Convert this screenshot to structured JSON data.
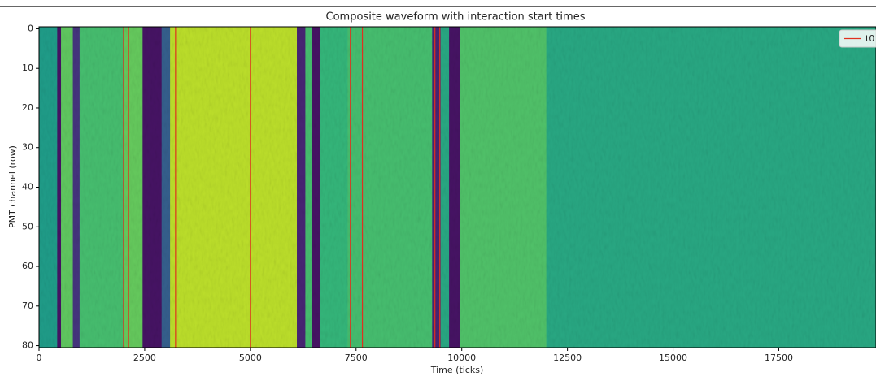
{
  "chart_data": {
    "type": "heatmap",
    "title": "Composite waveform with interaction start times",
    "x_label": "Time (ticks)",
    "y_label": "PMT channel (row)",
    "colormap": "viridis",
    "heatmap": {
      "x": [
        0,
        430,
        520,
        800,
        960,
        2000,
        2450,
        2900,
        3100,
        6100,
        6300,
        6450,
        6650,
        7300,
        9300,
        9500,
        9700,
        9950,
        12000,
        19800
      ],
      "values": [
        0.55,
        0.05,
        0.75,
        0.15,
        0.7,
        0.76,
        0.05,
        0.3,
        0.9,
        0.1,
        0.7,
        0.05,
        0.66,
        0.7,
        0.1,
        0.6,
        0.05,
        0.72,
        0.6
      ]
    },
    "vlines": {
      "name": "t0",
      "color": "#e0301e",
      "x": [
        2000,
        2115,
        3230,
        5000,
        7365,
        7650,
        9365,
        9480
      ]
    },
    "legend": "upper right",
    "xlim": [
      0,
      19800
    ],
    "ylim": [
      80.5,
      -0.5
    ],
    "xticks": [
      0,
      2500,
      5000,
      7500,
      10000,
      12500,
      15000,
      17500
    ],
    "yticks": [
      0,
      10,
      20,
      30,
      40,
      50,
      60,
      70,
      80
    ]
  }
}
